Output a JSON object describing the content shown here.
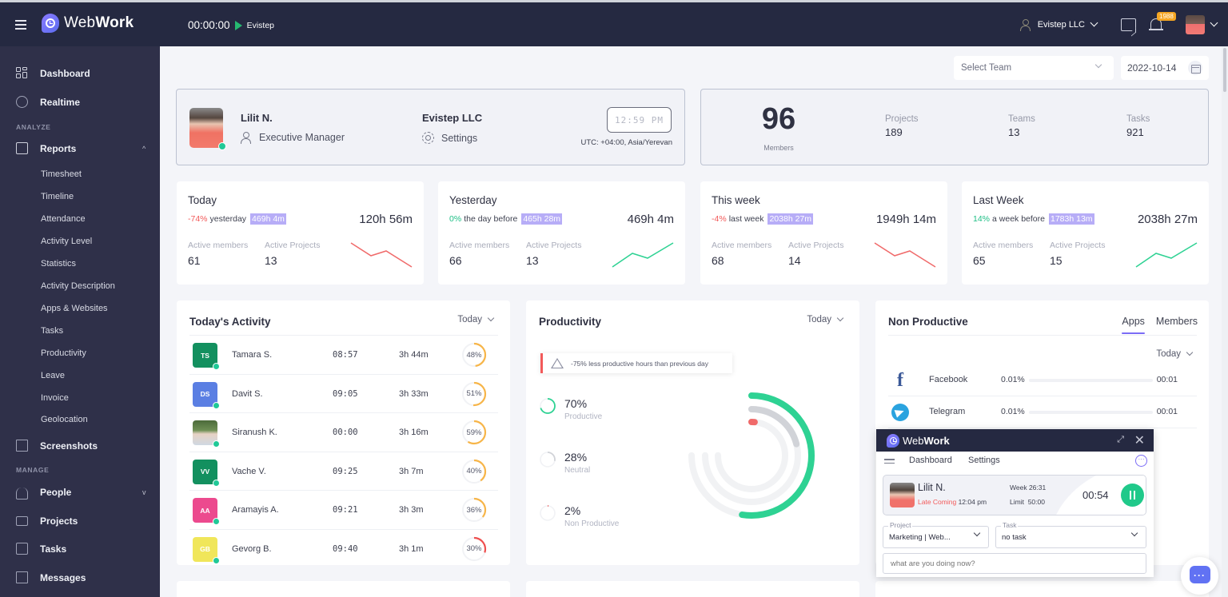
{
  "topbar": {
    "brand_light": "Web",
    "brand_bold": "Work",
    "timer": "00:00:00",
    "timer_project": "Evistep",
    "company": "Evistep LLC",
    "notification_count": "1988"
  },
  "sidebar": {
    "dashboard": "Dashboard",
    "realtime": "Realtime",
    "analyze_label": "ANALYZE",
    "reports": "Reports",
    "report_items": [
      "Timesheet",
      "Timeline",
      "Attendance",
      "Activity Level",
      "Statistics",
      "Activity Description",
      "Apps & Websites",
      "Tasks",
      "Productivity",
      "Leave",
      "Invoice",
      "Geolocation"
    ],
    "screenshots": "Screenshots",
    "manage_label": "MANAGE",
    "people": "People",
    "projects": "Projects",
    "tasks": "Tasks",
    "messages": "Messages"
  },
  "filters": {
    "team_placeholder": "Select Team",
    "date": "2022-10-14"
  },
  "profile": {
    "name": "Lilit N.",
    "role": "Executive Manager",
    "company": "Evistep LLC",
    "settings": "Settings",
    "clock": "12:59 PM",
    "timezone": "UTC: +04:00, Asia/Yerevan"
  },
  "stats": {
    "members_value": "96",
    "members_label": "Members",
    "projects_label": "Projects",
    "projects_value": "189",
    "teams_label": "Teams",
    "teams_value": "13",
    "tasks_label": "Tasks",
    "tasks_value": "921"
  },
  "periods": [
    {
      "title": "Today",
      "pct": "-74%",
      "trend": "neg",
      "compare_text": "yesterday",
      "compare_value": "469h 4m",
      "total": "120h 56m",
      "active_members_label": "Active members",
      "active_members": "61",
      "active_projects_label": "Active Projects",
      "active_projects": "13",
      "color": "#f06a6a"
    },
    {
      "title": "Yesterday",
      "pct": "0%",
      "trend": "pos",
      "compare_text": "the day before",
      "compare_value": "465h 28m",
      "total": "469h 4m",
      "active_members_label": "Active members",
      "active_members": "66",
      "active_projects_label": "Active Projects",
      "active_projects": "13",
      "color": "#2ed293"
    },
    {
      "title": "This week",
      "pct": "-4%",
      "trend": "neg",
      "compare_text": "last week",
      "compare_value": "2038h 27m",
      "total": "1949h 14m",
      "active_members_label": "Active members",
      "active_members": "68",
      "active_projects_label": "Active Projects",
      "active_projects": "14",
      "color": "#f06a6a"
    },
    {
      "title": "Last Week",
      "pct": "14%",
      "trend": "pos",
      "compare_text": "a week before",
      "compare_value": "1783h 13m",
      "total": "2038h 27m",
      "active_members_label": "Active members",
      "active_members": "65",
      "active_projects_label": "Active Projects",
      "active_projects": "15",
      "color": "#2ed293"
    }
  ],
  "activity": {
    "title": "Today's Activity",
    "range": "Today",
    "rows": [
      {
        "initials": "TS",
        "name": "Tamara S.",
        "start": "08:57",
        "duration": "3h 44m",
        "percent": "48%",
        "pct_num": 48,
        "color": "#13905f",
        "ring": "#f7b548"
      },
      {
        "initials": "DS",
        "name": "Davit S.",
        "start": "09:05",
        "duration": "3h 33m",
        "percent": "51%",
        "pct_num": 51,
        "color": "#5b7fe3",
        "ring": "#f7b548"
      },
      {
        "initials": "",
        "name": "Siranush K.",
        "start": "00:00",
        "duration": "3h 16m",
        "percent": "59%",
        "pct_num": 59,
        "color": "photo",
        "ring": "#f7b548"
      },
      {
        "initials": "VV",
        "name": "Vache V.",
        "start": "09:25",
        "duration": "3h 7m",
        "percent": "40%",
        "pct_num": 40,
        "color": "#13905f",
        "ring": "#f7b548"
      },
      {
        "initials": "AA",
        "name": "Aramayis A.",
        "start": "09:21",
        "duration": "3h 3m",
        "percent": "36%",
        "pct_num": 36,
        "color": "#ec4a8e",
        "ring": "#f7b548"
      },
      {
        "initials": "GB",
        "name": "Gevorg B.",
        "start": "09:40",
        "duration": "3h 1m",
        "percent": "30%",
        "pct_num": 30,
        "color": "#f0e65a",
        "ring": "#ef4f4f"
      }
    ]
  },
  "productivity": {
    "title": "Productivity",
    "range": "Today",
    "alert": "-75% less productive hours than previous day",
    "items": [
      {
        "value": "70%",
        "label": "Productive",
        "pct": 70,
        "color": "#2ed293"
      },
      {
        "value": "28%",
        "label": "Neutral",
        "pct": 28,
        "color": "#d1d3d8"
      },
      {
        "value": "2%",
        "label": "Non Productive",
        "pct": 2,
        "color": "#f06a6a"
      }
    ]
  },
  "non_productive": {
    "title": "Non Productive",
    "tabs": [
      "Apps",
      "Members"
    ],
    "active_tab": "Apps",
    "range": "Today",
    "apps": [
      {
        "icon": "facebook",
        "name": "Facebook",
        "percent": "0.01%",
        "time": "00:01"
      },
      {
        "icon": "telegram",
        "name": "Telegram",
        "percent": "0.01%",
        "time": "00:01"
      }
    ]
  },
  "widget": {
    "brand_light": "Web",
    "brand_bold": "Work",
    "nav_dashboard": "Dashboard",
    "nav_settings": "Settings",
    "user_name": "Lilit N.",
    "late_label": "Late Coming",
    "late_time": "12:04 pm",
    "week_label": "Week",
    "week_value": "26:31",
    "limit_label": "Limit",
    "limit_value": "50:00",
    "timer": "00:54",
    "project_label": "Project",
    "project_value": "Marketing | Web...",
    "task_label": "Task",
    "task_value": "no task",
    "note_placeholder": "what are you doing now?"
  }
}
